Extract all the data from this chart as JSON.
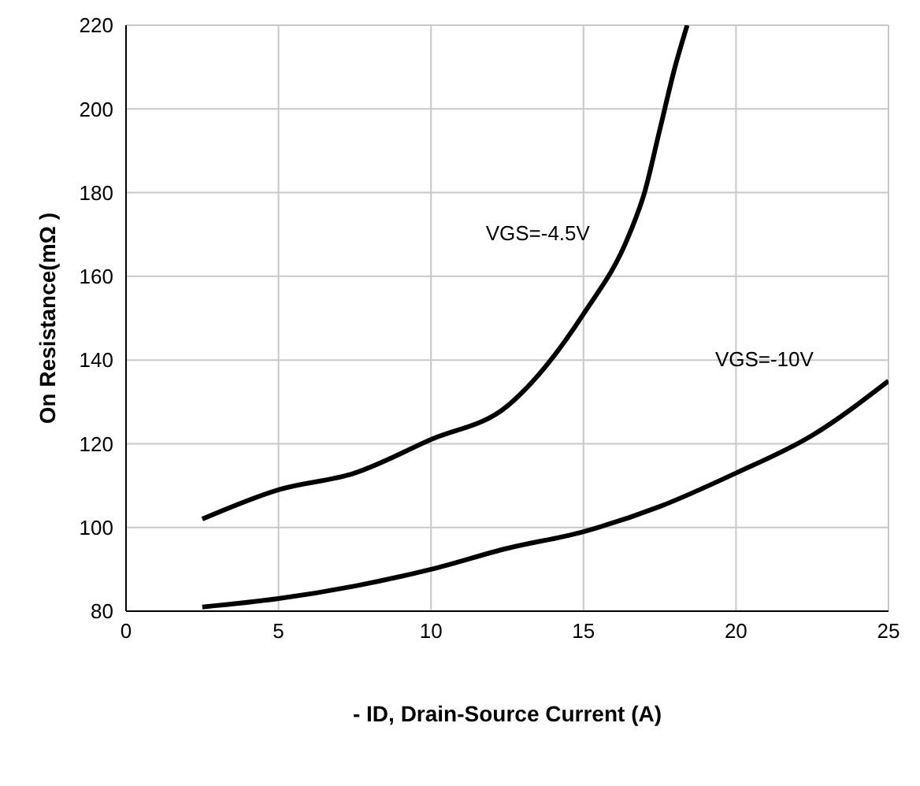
{
  "chart_data": {
    "type": "line",
    "xlabel": "- ID, Drain-Source Current (A)",
    "ylabel": "On Resistance(mΩ )",
    "xlim": [
      0,
      25
    ],
    "xticks": [
      0,
      5,
      10,
      15,
      20,
      25
    ],
    "ylim": [
      80,
      220
    ],
    "yticks": [
      80,
      100,
      120,
      140,
      160,
      180,
      200,
      220
    ],
    "grid": true,
    "legend": false,
    "marker": "none",
    "line_style": "solid",
    "series": [
      {
        "name": "VGS=-4.5V",
        "color": "#000000",
        "x": [
          2.5,
          5,
          7.5,
          10,
          12.5,
          15,
          16.5,
          17,
          17.5,
          18,
          18.4
        ],
        "values": [
          102,
          109,
          113,
          121,
          129,
          151,
          170,
          180,
          195,
          210,
          220
        ]
      },
      {
        "name": "VGS=-10V",
        "color": "#000000",
        "x": [
          2.5,
          5,
          7.5,
          10,
          12.5,
          15,
          17.5,
          20,
          22.5,
          25
        ],
        "values": [
          81,
          83,
          86,
          90,
          95,
          99,
          105,
          113,
          122,
          135
        ]
      }
    ]
  }
}
